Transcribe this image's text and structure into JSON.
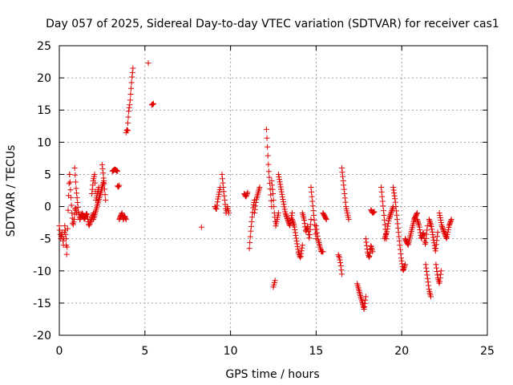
{
  "chart_data": {
    "type": "scatter",
    "title": "Day 057 of 2025, Sidereal Day-to-day VTEC variation (SDTVAR) for receiver cas1",
    "xlabel": "GPS time / hours",
    "ylabel": "SDTVAR / TECUs",
    "xlim": [
      0,
      25
    ],
    "ylim": [
      -20,
      25
    ],
    "xticks": [
      0,
      5,
      10,
      15,
      20,
      25
    ],
    "yticks": [
      -20,
      -15,
      -10,
      -5,
      0,
      5,
      10,
      15,
      20,
      25
    ],
    "grid": true,
    "marker": "+",
    "marker_color": "#e00000",
    "series": [
      {
        "name": "cas1",
        "segments": [
          {
            "x0": 0.0,
            "x1": 0.4,
            "y": [
              -3,
              -5,
              -4,
              -6,
              -3,
              -5
            ]
          },
          {
            "x0": 0.4,
            "x1": 0.6,
            "y": [
              -6,
              -8,
              -4,
              0,
              3,
              5
            ]
          },
          {
            "x0": 0.6,
            "x1": 1.0,
            "y": [
              5,
              2,
              -1,
              -3,
              -2,
              0,
              -1
            ]
          },
          {
            "x0": 0.9,
            "x1": 1.2,
            "y": [
              6,
              3,
              1,
              -1,
              -2
            ]
          },
          {
            "x0": 1.2,
            "x1": 2.0,
            "y": [
              -2,
              -1,
              -2,
              -1,
              -3,
              -2,
              -1
            ]
          },
          {
            "x0": 1.9,
            "x1": 2.3,
            "y": [
              2,
              4,
              5,
              1,
              2,
              3
            ]
          },
          {
            "x0": 2.0,
            "x1": 2.6,
            "y": [
              -2,
              -1,
              0,
              1,
              2,
              3,
              4
            ]
          },
          {
            "x0": 2.5,
            "x1": 2.7,
            "y": [
              6.5,
              5,
              3,
              1
            ]
          },
          {
            "x0": 3.1,
            "x1": 3.4,
            "y": [
              5.5,
              5.8,
              5.5
            ]
          },
          {
            "x0": 3.4,
            "x1": 3.5,
            "y": [
              3.2,
              3,
              3.3
            ]
          },
          {
            "x0": 3.5,
            "x1": 3.9,
            "y": [
              -2,
              -1.5,
              -1,
              -2,
              -1.5,
              -2
            ]
          },
          {
            "x0": 3.9,
            "x1": 4.0,
            "y": [
              11.5,
              12,
              11.8
            ]
          },
          {
            "x0": 4.0,
            "x1": 4.3,
            "y": [
              13,
              15,
              16,
              18,
              20,
              21.5
            ]
          },
          {
            "x0": 5.2,
            "x1": 5.2,
            "y": [
              22.3
            ]
          },
          {
            "x0": 5.4,
            "x1": 5.5,
            "y": [
              15.8,
              16
            ]
          },
          {
            "x0": 8.3,
            "x1": 8.3,
            "y": [
              -3.2
            ]
          },
          {
            "x0": 9.1,
            "x1": 9.4,
            "y": [
              0,
              -0.5,
              1,
              2,
              3
            ]
          },
          {
            "x0": 9.5,
            "x1": 9.9,
            "y": [
              5,
              3,
              1,
              -1,
              0,
              -1
            ]
          },
          {
            "x0": 10.8,
            "x1": 11.0,
            "y": [
              2,
              1.5,
              2.2
            ]
          },
          {
            "x0": 11.1,
            "x1": 11.4,
            "y": [
              -6.5,
              -4,
              -2,
              0,
              1
            ]
          },
          {
            "x0": 11.4,
            "x1": 11.7,
            "y": [
              -1,
              1,
              2,
              3
            ]
          },
          {
            "x0": 12.1,
            "x1": 12.4,
            "y": [
              12,
              9,
              6,
              4,
              2,
              0
            ]
          },
          {
            "x0": 12.4,
            "x1": 12.8,
            "y": [
              4,
              2,
              -1,
              -3,
              -2,
              -1
            ]
          },
          {
            "x0": 12.5,
            "x1": 12.6,
            "y": [
              -12.5,
              -12,
              -11.5
            ]
          },
          {
            "x0": 12.8,
            "x1": 13.6,
            "y": [
              5,
              3,
              1,
              -1,
              -2,
              -3,
              -1
            ]
          },
          {
            "x0": 13.6,
            "x1": 14.2,
            "y": [
              -2,
              -3,
              -5,
              -7,
              -8,
              -6
            ]
          },
          {
            "x0": 14.2,
            "x1": 14.7,
            "y": [
              -1,
              -2,
              -4,
              -3,
              -5,
              -2
            ]
          },
          {
            "x0": 14.7,
            "x1": 15.0,
            "y": [
              3,
              1,
              -1,
              -3,
              -5
            ]
          },
          {
            "x0": 15.0,
            "x1": 15.4,
            "y": [
              -3,
              -5,
              -6,
              -7,
              -7
            ]
          },
          {
            "x0": 15.4,
            "x1": 15.6,
            "y": [
              -1,
              -1.5,
              -2
            ]
          },
          {
            "x0": 16.3,
            "x1": 16.5,
            "y": [
              -7.5,
              -8,
              -9,
              -10.5
            ]
          },
          {
            "x0": 16.5,
            "x1": 16.9,
            "y": [
              6,
              4,
              2,
              0,
              -1,
              -2
            ]
          },
          {
            "x0": 17.4,
            "x1": 17.9,
            "y": [
              -12,
              -13,
              -14,
              -15,
              -16,
              -14
            ]
          },
          {
            "x0": 17.9,
            "x1": 18.3,
            "y": [
              -5,
              -7,
              -8,
              -6,
              -7
            ]
          },
          {
            "x0": 18.2,
            "x1": 18.4,
            "y": [
              -0.5,
              -1,
              -0.8
            ]
          },
          {
            "x0": 18.8,
            "x1": 19.1,
            "y": [
              3,
              1,
              -1,
              -3,
              -5
            ]
          },
          {
            "x0": 19.0,
            "x1": 19.5,
            "y": [
              -5,
              -4,
              -2,
              -1,
              0
            ]
          },
          {
            "x0": 19.5,
            "x1": 20.2,
            "y": [
              3,
              1,
              -2,
              -5,
              -8,
              -10,
              -9
            ]
          },
          {
            "x0": 20.2,
            "x1": 20.9,
            "y": [
              -5,
              -6,
              -4,
              -2,
              -1
            ]
          },
          {
            "x0": 20.9,
            "x1": 21.5,
            "y": [
              -2,
              -3,
              -5,
              -4,
              -6,
              -3
            ]
          },
          {
            "x0": 21.4,
            "x1": 21.7,
            "y": [
              -9,
              -11,
              -13,
              -14
            ]
          },
          {
            "x0": 21.6,
            "x1": 22.1,
            "y": [
              -2,
              -3,
              -5,
              -7,
              -4
            ]
          },
          {
            "x0": 22.0,
            "x1": 22.3,
            "y": [
              -9,
              -11,
              -12,
              -10
            ]
          },
          {
            "x0": 22.2,
            "x1": 22.9,
            "y": [
              -1,
              -3,
              -4,
              -5,
              -3,
              -2
            ]
          }
        ]
      }
    ]
  }
}
